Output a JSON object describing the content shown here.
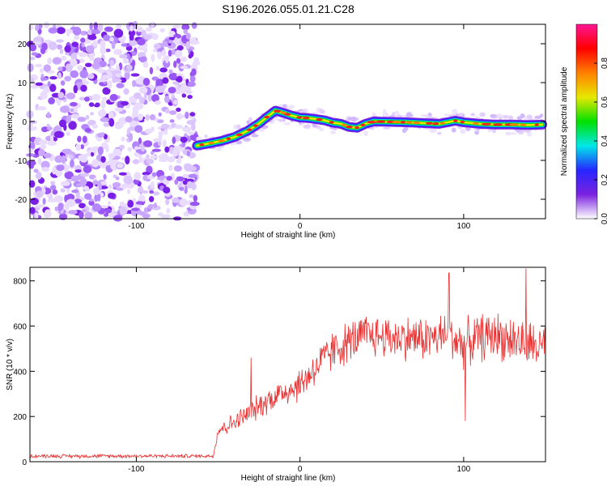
{
  "title": "S196.2026.055.01.21.C28",
  "chart_data": [
    {
      "type": "heatmap",
      "name": "spectrogram",
      "xlabel": "Height of straight line (km)",
      "ylabel": "Frequency (Hz)",
      "xlim": [
        -165,
        150
      ],
      "ylim": [
        -25,
        25
      ],
      "xticks": [
        -100,
        0,
        100
      ],
      "xtick_labels": [
        "-100",
        "0",
        "100"
      ],
      "yticks": [
        -20,
        -10,
        0,
        10,
        20
      ],
      "ytick_labels": [
        "-20",
        "-10",
        "0",
        "10",
        "20"
      ],
      "noise_region_x": [
        -165,
        -63
      ],
      "ridge": {
        "x": [
          -63,
          -55,
          -48,
          -40,
          -32,
          -25,
          -20,
          -15,
          -10,
          -5,
          0,
          5,
          10,
          15,
          20,
          25,
          30,
          35,
          40,
          45,
          55,
          65,
          75,
          85,
          95,
          100,
          110,
          120,
          130,
          140,
          148
        ],
        "freq": [
          -6.2,
          -5.6,
          -5.0,
          -4.0,
          -2.4,
          -0.5,
          1.2,
          2.8,
          2.2,
          1.5,
          1.0,
          0.9,
          0.6,
          0.3,
          -0.3,
          -0.6,
          -1.4,
          -1.6,
          -0.6,
          0.0,
          -0.1,
          -0.2,
          -0.4,
          -0.6,
          0.2,
          -0.2,
          -0.6,
          -0.8,
          -0.8,
          -0.9,
          -0.8
        ]
      },
      "colorbar": {
        "label": "Normalized spectral amplitude",
        "range": [
          0,
          1
        ],
        "ticks": [
          0.0,
          0.2,
          0.4,
          0.6,
          0.8
        ],
        "tick_labels": [
          "0.0",
          "0.2",
          "0.4",
          "0.6",
          "0.8"
        ],
        "colors": [
          "#ffffff",
          "#7b22e0",
          "#2626ff",
          "#00e8e8",
          "#00e000",
          "#e8e800",
          "#ff8000",
          "#ff0000",
          "#ff1493"
        ]
      }
    },
    {
      "type": "line",
      "name": "snr",
      "xlabel": "Height of straight line (km)",
      "ylabel": "SNR (10 * v/v)",
      "xlim": [
        -165,
        150
      ],
      "ylim": [
        0,
        860
      ],
      "xticks": [
        -100,
        0,
        100
      ],
      "xtick_labels": [
        "-100",
        "0",
        "100"
      ],
      "yticks": [
        0,
        200,
        400,
        600,
        800
      ],
      "ytick_labels": [
        "0",
        "200",
        "400",
        "600",
        "800"
      ],
      "color": "#e83030",
      "trend": {
        "x": [
          -165,
          -120,
          -80,
          -53,
          -50,
          -40,
          -30,
          -20,
          -10,
          0,
          10,
          20,
          30,
          40,
          60,
          80,
          90,
          100,
          110,
          120,
          140,
          150
        ],
        "y": [
          25,
          25,
          25,
          25,
          140,
          175,
          220,
          270,
          310,
          340,
          420,
          490,
          530,
          560,
          550,
          545,
          560,
          520,
          550,
          560,
          520,
          500
        ]
      },
      "noise_amplitude": {
        "x": [
          -165,
          -53,
          -50,
          0,
          20,
          150
        ],
        "y": [
          10,
          10,
          40,
          90,
          110,
          130
        ]
      },
      "spikes": [
        {
          "x": -30,
          "y": 460
        },
        {
          "x": 91,
          "y": 835
        },
        {
          "x": 101,
          "y": 180
        },
        {
          "x": 138,
          "y": 855
        }
      ]
    }
  ]
}
